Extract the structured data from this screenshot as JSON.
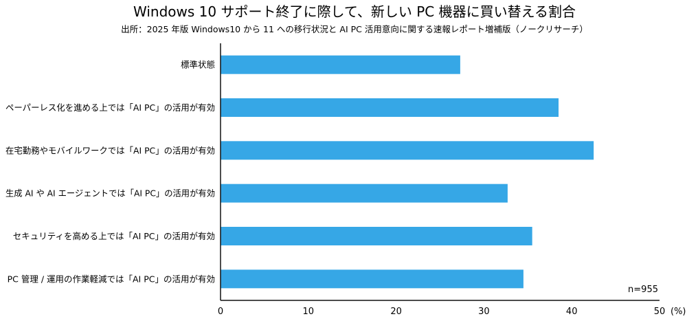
{
  "chart_data": {
    "type": "bar",
    "orientation": "horizontal",
    "title": "Windows 10 サポート終了に際して、新しい PC 機器に買い替える割合",
    "subtitle": "出所：2025 年版 Windows10 から 11 への移行状況と AI PC 活用意向に関する速報レポート増補版（ノークリサーチ）",
    "categories": [
      "標準状態",
      "ペーパーレス化を進める上では「AI PC」の活用が有効",
      "在宅勤務やモバイルワークでは「AI PC」の活用が有効",
      "生成 AI や AI エージェントでは「AI PC」の活用が有効",
      "セキュリティを高める上では「AI PC」の活用が有効",
      "PC 管理 / 運用の作業軽減では「AI PC」の活用が有効"
    ],
    "values": [
      27.3,
      38.5,
      42.5,
      32.7,
      35.5,
      34.5
    ],
    "xlim": [
      0,
      50
    ],
    "xticks": [
      "0",
      "10",
      "20",
      "30",
      "40",
      "50"
    ],
    "xlabel": "(%)",
    "ylabel": "",
    "note": "n=955",
    "grid": false,
    "bar_color": "#36a7e6"
  }
}
